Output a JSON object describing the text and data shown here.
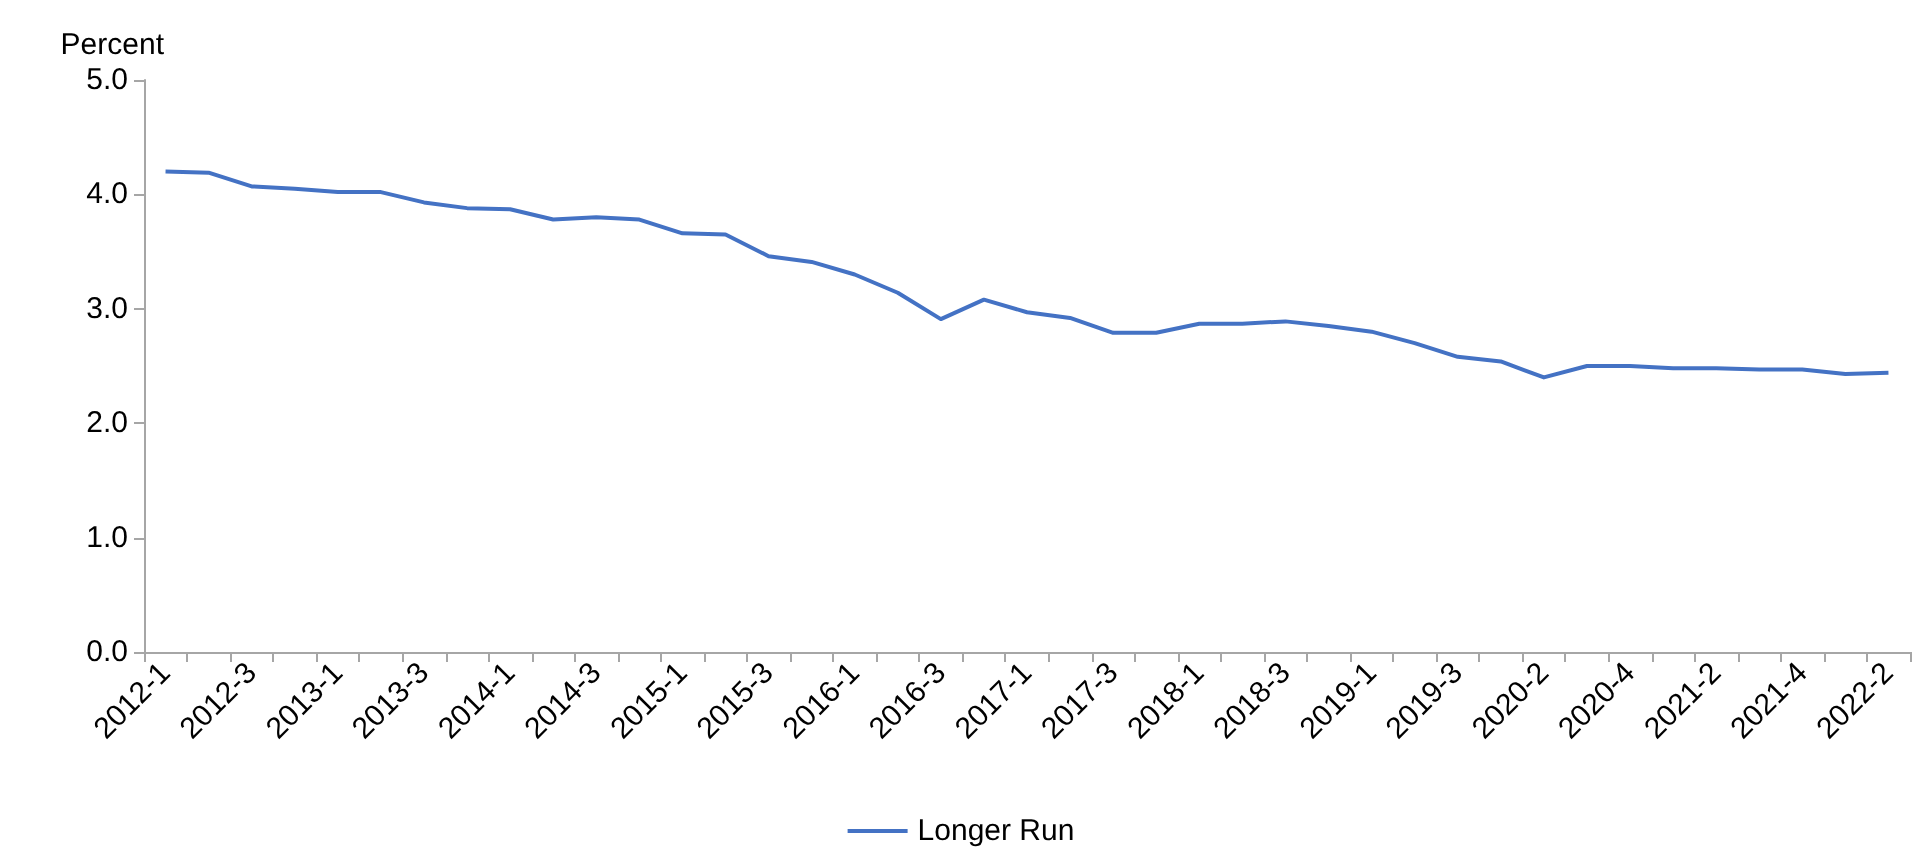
{
  "chart_data": {
    "type": "line",
    "ylabel": "Percent",
    "categories": [
      "2012-1",
      null,
      "2012-3",
      null,
      "2013-1",
      null,
      "2013-3",
      null,
      "2014-1",
      null,
      "2014-3",
      null,
      "2015-1",
      null,
      "2015-3",
      null,
      "2016-1",
      null,
      "2016-3",
      null,
      "2017-1",
      null,
      "2017-3",
      null,
      "2018-1",
      null,
      "2018-3",
      null,
      "2019-1",
      null,
      "2019-3",
      null,
      "2020-2",
      null,
      "2020-4",
      null,
      "2021-2",
      null,
      "2021-4",
      null,
      "2022-2"
    ],
    "series": [
      {
        "name": "Longer Run",
        "color": "#4472c4",
        "values": [
          4.2,
          4.19,
          4.07,
          4.05,
          4.02,
          4.02,
          3.93,
          3.88,
          3.87,
          3.78,
          3.8,
          3.78,
          3.66,
          3.65,
          3.46,
          3.41,
          3.3,
          3.14,
          2.91,
          3.08,
          2.97,
          2.92,
          2.79,
          2.79,
          2.87,
          2.87,
          2.89,
          2.85,
          2.8,
          2.7,
          2.58,
          2.54,
          2.4,
          2.5,
          2.5,
          2.48,
          2.48,
          2.47,
          2.47,
          2.43,
          2.44
        ]
      }
    ],
    "ylim": [
      0,
      5
    ],
    "yticks": [
      {
        "value": 0,
        "label": "0.0"
      },
      {
        "value": 1,
        "label": "1.0"
      },
      {
        "value": 2,
        "label": "2.0"
      },
      {
        "value": 3,
        "label": "3.0"
      },
      {
        "value": 4,
        "label": "4.0"
      },
      {
        "value": 5,
        "label": "5.0"
      }
    ],
    "grid": false,
    "legend": "bottom",
    "marker": "none",
    "line_style": "solid"
  }
}
